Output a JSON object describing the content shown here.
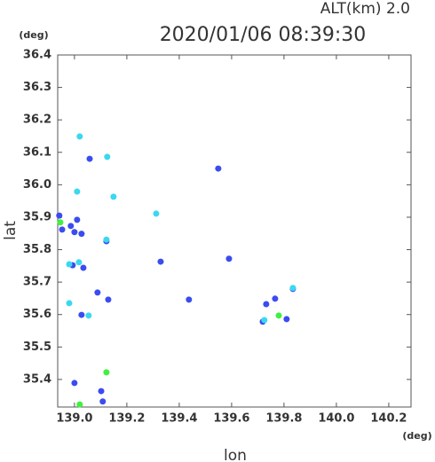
{
  "chart_data": {
    "type": "scatter",
    "title": "2020/01/06 08:39:30",
    "subtitle": "ALT(km)  2.0",
    "y_unit": "(deg)",
    "x_unit": "(deg)",
    "y_label": "lat",
    "x_label": "lon",
    "xlim": [
      138.936,
      140.285
    ],
    "ylim": [
      35.315,
      36.4
    ],
    "xticks": [
      {
        "value": 139,
        "label": "139.0"
      },
      139.2,
      139.4,
      139.6,
      139.8,
      {
        "value": 140,
        "label": "140.0"
      },
      140.2
    ],
    "yticks": [
      36.4,
      36.3,
      36.2,
      36.1,
      {
        "value": 36,
        "label": "36.0"
      },
      35.9,
      35.8,
      35.7,
      35.6,
      35.5,
      35.4
    ],
    "series": [
      {
        "color": "#3a4cf0",
        "x": [
          139.058,
          138.942,
          138.953,
          138.986,
          139.0,
          139.027,
          138.993,
          139.034,
          139.088,
          139.027,
          139.129,
          139.102,
          139.108,
          139.0,
          139.549,
          139.329,
          139.437,
          139.59,
          139.719,
          139.834,
          139.81,
          139.766,
          139.732,
          139.122,
          139.01
        ],
        "y": [
          36.08,
          35.905,
          35.862,
          35.873,
          35.854,
          35.849,
          35.752,
          35.744,
          35.668,
          35.599,
          35.646,
          35.364,
          35.332,
          35.389,
          36.05,
          35.763,
          35.646,
          35.772,
          35.578,
          35.679,
          35.586,
          35.649,
          35.632,
          35.826,
          35.892
        ]
      },
      {
        "color": "#3ad8f0",
        "x": [
          139.02,
          139.01,
          139.149,
          139.312,
          138.98,
          138.98,
          139.054,
          139.834,
          139.125,
          139.725,
          139.122,
          139.017
        ],
        "y": [
          36.149,
          35.979,
          35.963,
          35.911,
          35.755,
          35.635,
          35.597,
          35.682,
          36.086,
          35.583,
          35.831,
          35.761
        ]
      },
      {
        "color": "#40f040",
        "x": [
          139.122,
          139.78,
          139.02,
          138.946
        ],
        "y": [
          35.422,
          35.597,
          35.323,
          35.884
        ]
      }
    ]
  }
}
